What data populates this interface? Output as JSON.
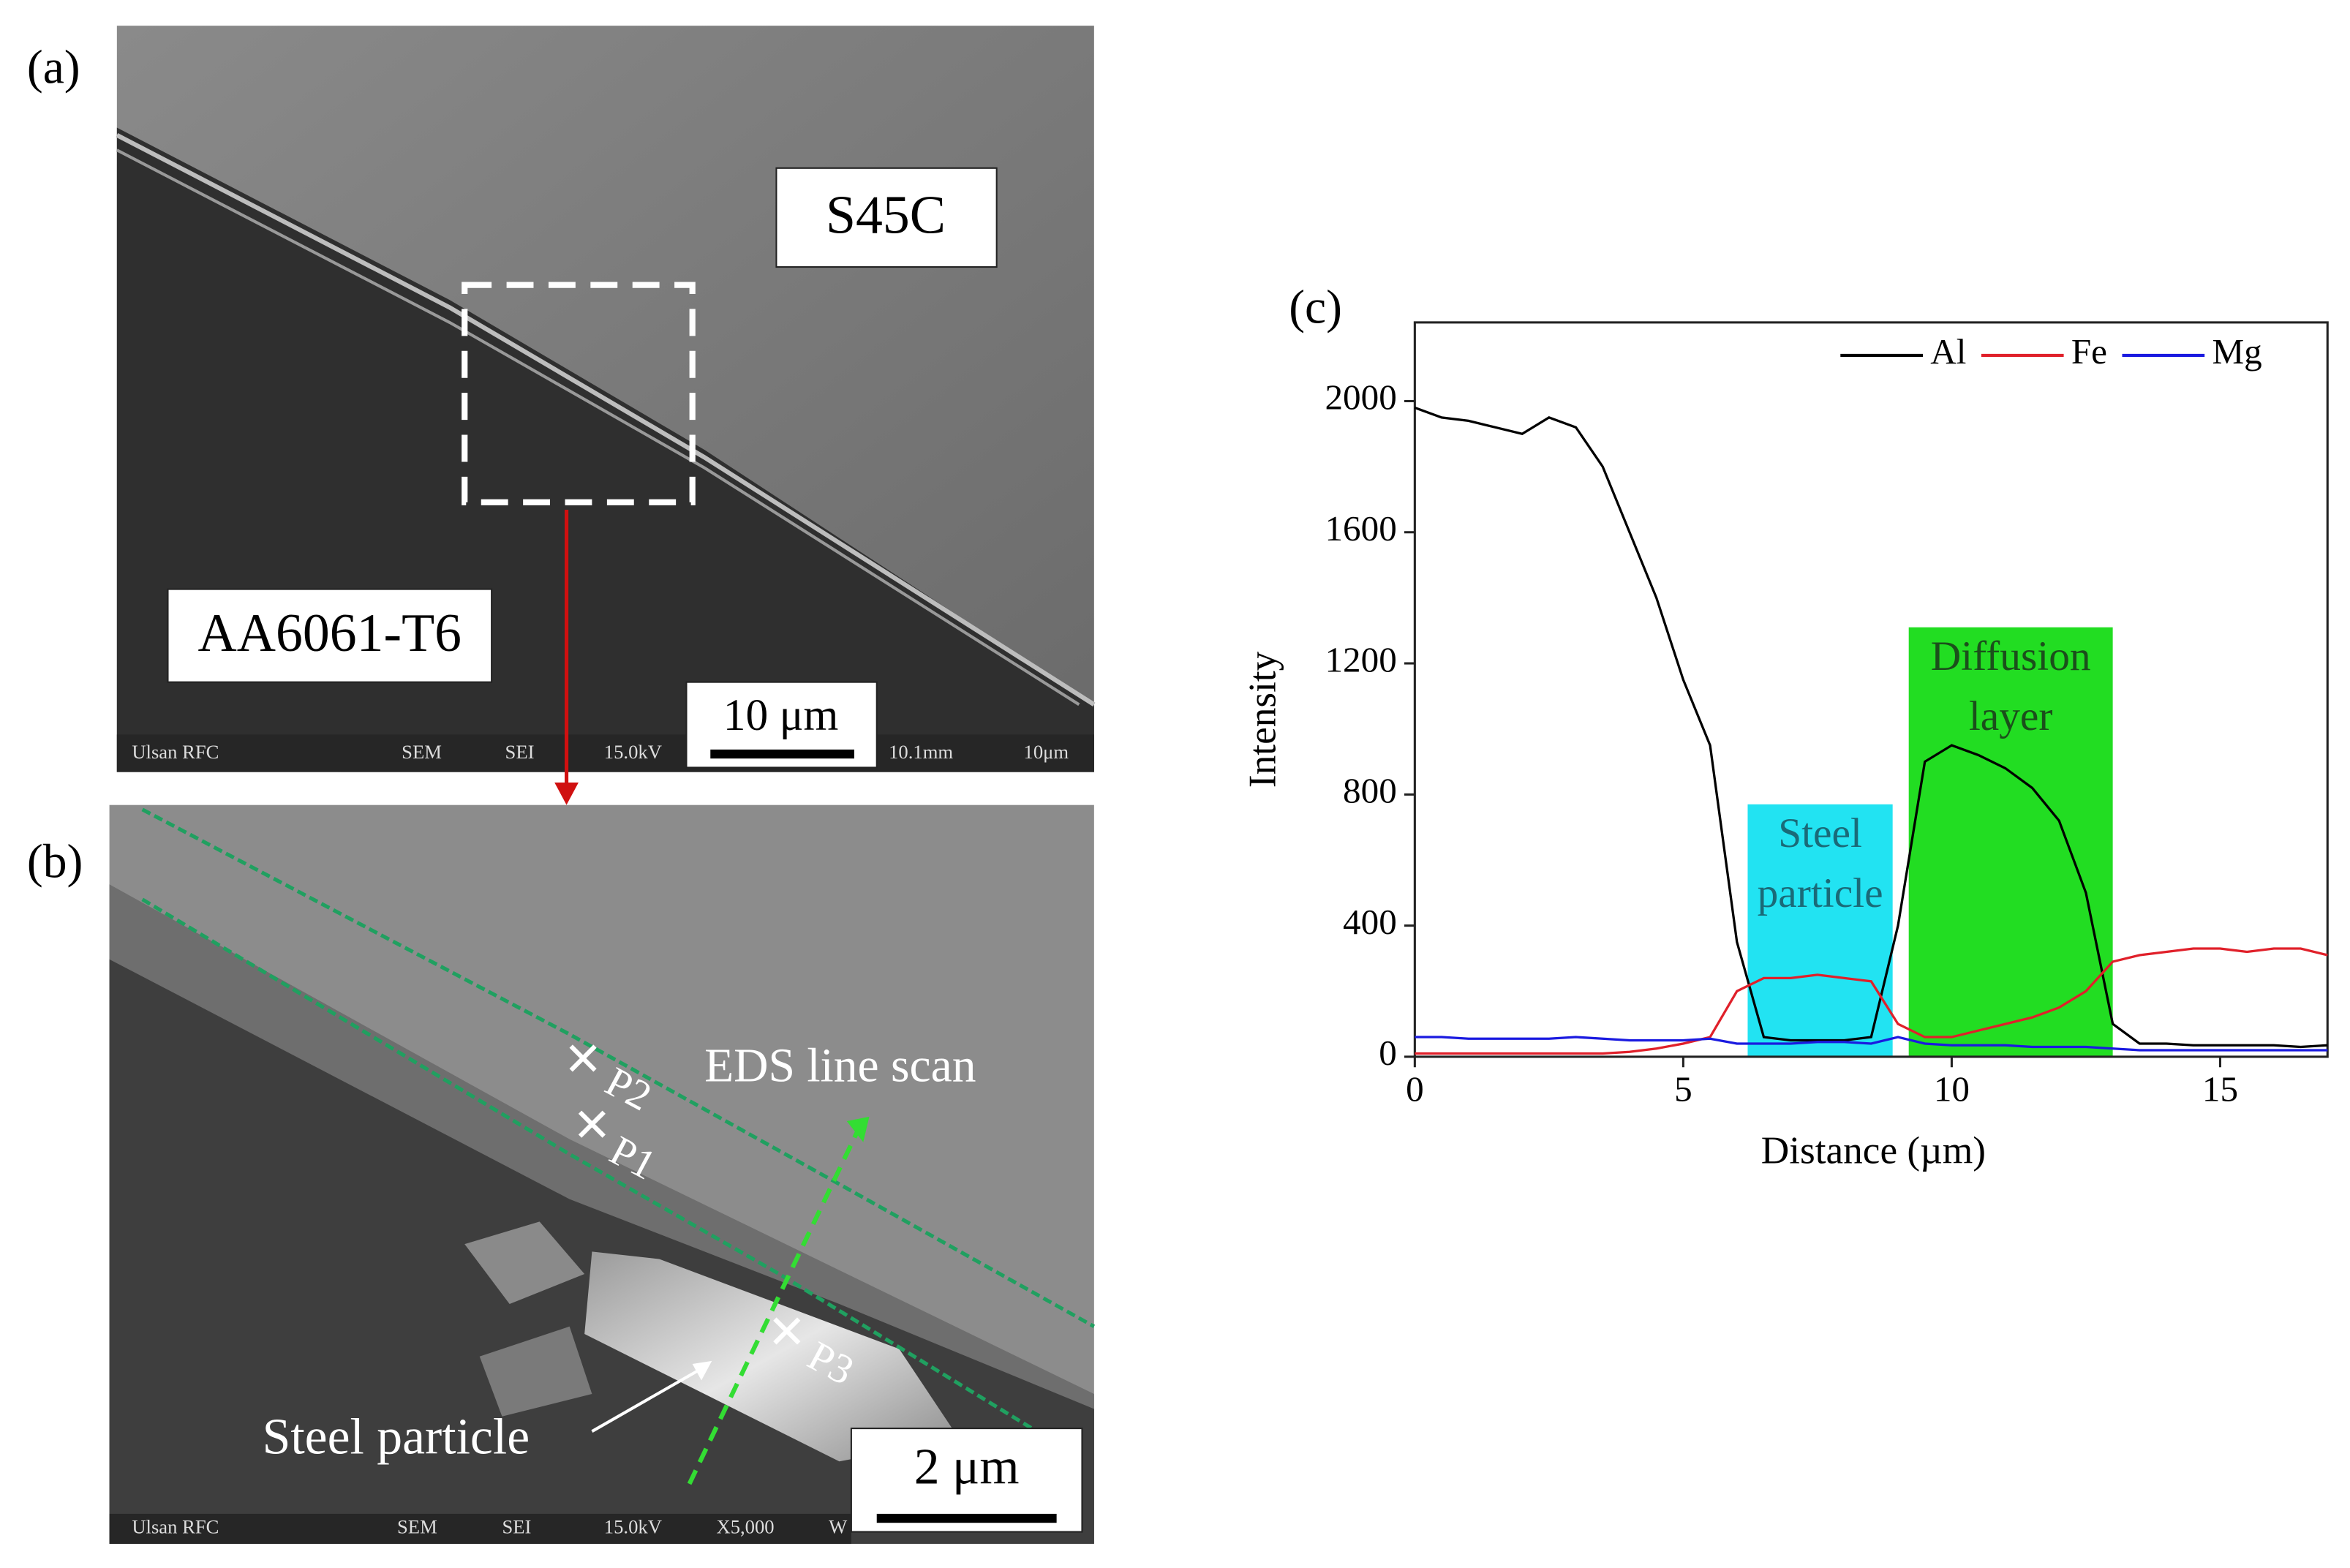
{
  "figure": {
    "panel_a": {
      "label": "(a)",
      "upper_material": "S45C",
      "lower_material": "AA6061-T6",
      "scale_bar": "10 μm",
      "footer": [
        "Ulsan RFC",
        "SEM",
        "SEI",
        "15.0kV",
        "10.1mm",
        "10μm"
      ]
    },
    "panel_b": {
      "label": "(b)",
      "scan_label": "EDS line scan",
      "points": [
        "P2",
        "P1",
        "P3"
      ],
      "particle_label": "Steel particle",
      "scale_bar": "2 μm",
      "footer": [
        "Ulsan RFC",
        "SEM",
        "SEI",
        "15.0kV",
        "X5,000",
        "W"
      ]
    }
  },
  "chart_data": {
    "type": "line",
    "label": "(c)",
    "x_label": "Distance (µm)",
    "y_label": "Intensity",
    "x": [
      0,
      0.5,
      1,
      1.5,
      2,
      2.5,
      3,
      3.5,
      4,
      4.5,
      5,
      5.5,
      6,
      6.5,
      7,
      7.5,
      8,
      8.5,
      9,
      9.5,
      10,
      10.5,
      11,
      11.5,
      12,
      12.5,
      13,
      13.5,
      14,
      14.5,
      15,
      15.5,
      16,
      16.5,
      17
    ],
    "series": [
      {
        "name": "Al",
        "color": "#000000",
        "values": [
          1980,
          1950,
          1940,
          1920,
          1900,
          1950,
          1920,
          1800,
          1600,
          1400,
          1150,
          950,
          350,
          60,
          50,
          50,
          50,
          60,
          400,
          900,
          950,
          920,
          880,
          820,
          720,
          500,
          100,
          40,
          40,
          35,
          35,
          35,
          35,
          30,
          35
        ]
      },
      {
        "name": "Fe",
        "color": "#e0202a",
        "values": [
          10,
          10,
          10,
          10,
          10,
          10,
          10,
          10,
          15,
          25,
          40,
          60,
          200,
          240,
          240,
          250,
          240,
          230,
          100,
          60,
          60,
          80,
          100,
          120,
          150,
          200,
          290,
          310,
          320,
          330,
          330,
          320,
          330,
          330,
          310
        ]
      },
      {
        "name": "Mg",
        "color": "#1a1ae0",
        "values": [
          60,
          60,
          55,
          55,
          55,
          55,
          60,
          55,
          50,
          50,
          50,
          55,
          40,
          40,
          40,
          45,
          45,
          40,
          60,
          40,
          35,
          35,
          35,
          30,
          30,
          30,
          25,
          20,
          20,
          20,
          20,
          20,
          20,
          20,
          20
        ]
      }
    ],
    "xlim": [
      0,
      17
    ],
    "ylim": [
      0,
      2240
    ],
    "xticks": [
      0,
      5,
      10,
      15
    ],
    "yticks": [
      0,
      400,
      800,
      1200,
      1600,
      2000
    ],
    "legend": "top-right",
    "annotations": [
      {
        "text": [
          "Steel",
          "particle"
        ],
        "x": [
          6.2,
          8.9
        ],
        "y_top": 770,
        "color": "#22e3f2",
        "text_color": "#1a6a78"
      },
      {
        "text": [
          "Diffusion",
          "layer"
        ],
        "x": [
          9.2,
          13.0
        ],
        "y_top": 1310,
        "color": "#22dd22",
        "text_color": "#1b4f1b"
      }
    ]
  }
}
